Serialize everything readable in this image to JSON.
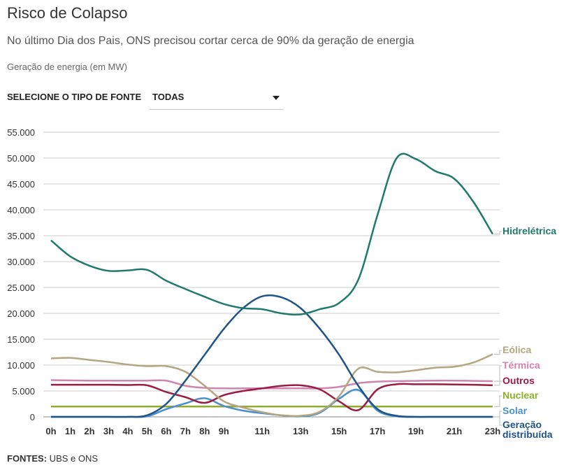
{
  "header": {
    "title": "Risco de Colapso",
    "subtitle": "No último Dia dos Pais, ONS precisou cortar cerca de 90% da geração de energia",
    "unit": "Geração de energia (em MW)"
  },
  "filter": {
    "label": "SELECIONE O TIPO DE FONTE",
    "value": "TODAS"
  },
  "footer": {
    "label": "FONTES:",
    "text": " UBS e ONS"
  },
  "chart_data": {
    "type": "line",
    "title": "Geração de energia (em MW)",
    "xlabel": "",
    "ylabel": "",
    "ylim": [
      0,
      55000
    ],
    "yticks": [
      0,
      5000,
      10000,
      15000,
      20000,
      25000,
      30000,
      35000,
      40000,
      45000,
      50000,
      55000
    ],
    "ytick_labels": [
      "0",
      "5.000",
      "10.000",
      "15.000",
      "20.000",
      "25.000",
      "30.000",
      "35.000",
      "40.000",
      "45.000",
      "50.000",
      "55.000"
    ],
    "x": [
      0,
      1,
      2,
      3,
      4,
      5,
      6,
      7,
      8,
      9,
      10,
      11,
      12,
      13,
      14,
      15,
      16,
      17,
      18,
      19,
      20,
      21,
      22,
      23
    ],
    "xtick_labels": [
      {
        "h": 0,
        "l": "0h"
      },
      {
        "h": 1,
        "l": "1h"
      },
      {
        "h": 2,
        "l": "2h"
      },
      {
        "h": 3,
        "l": "3h"
      },
      {
        "h": 4,
        "l": "4h"
      },
      {
        "h": 5,
        "l": "5h"
      },
      {
        "h": 6,
        "l": "6h"
      },
      {
        "h": 7,
        "l": "7h"
      },
      {
        "h": 8,
        "l": "8h"
      },
      {
        "h": 9,
        "l": "9h"
      },
      {
        "h": 11,
        "l": "11h"
      },
      {
        "h": 13,
        "l": "13h"
      },
      {
        "h": 15,
        "l": "15h"
      },
      {
        "h": 17,
        "l": "17h"
      },
      {
        "h": 19,
        "l": "19h"
      },
      {
        "h": 21,
        "l": "21h"
      },
      {
        "h": 23,
        "l": "23h"
      }
    ],
    "legend": "right-end-labels",
    "series": [
      {
        "name": "Hidrelétrica",
        "color": "#1f7a6c",
        "values": [
          34100,
          31000,
          29200,
          28200,
          28300,
          28400,
          26300,
          24700,
          23200,
          21800,
          21000,
          20800,
          20000,
          19800,
          20800,
          22000,
          26500,
          39000,
          50000,
          49800,
          47500,
          46000,
          41500,
          35300
        ]
      },
      {
        "name": "Eólica",
        "color": "#b5a580",
        "values": [
          11300,
          11400,
          11000,
          10600,
          10100,
          9800,
          9800,
          8700,
          6000,
          3000,
          1800,
          900,
          300,
          200,
          1000,
          4000,
          9300,
          8700,
          8600,
          9000,
          9500,
          9700,
          10500,
          12100
        ]
      },
      {
        "name": "Térmica",
        "color": "#d183b0",
        "values": [
          7100,
          7050,
          7000,
          7000,
          7000,
          7000,
          7000,
          6000,
          5600,
          5500,
          5500,
          5500,
          5500,
          5500,
          5500,
          5800,
          6500,
          6800,
          6900,
          6950,
          7000,
          7000,
          6950,
          6900
        ]
      },
      {
        "name": "Outros",
        "color": "#9b1b42",
        "values": [
          6200,
          6200,
          6200,
          6200,
          6150,
          6100,
          4800,
          3800,
          2700,
          4200,
          5000,
          5500,
          6000,
          6100,
          5300,
          3000,
          1300,
          5300,
          6300,
          6300,
          6300,
          6250,
          6200,
          6100
        ]
      },
      {
        "name": "Nuclear",
        "color": "#8fae2b",
        "values": [
          2000,
          2000,
          2000,
          2000,
          2000,
          2000,
          2000,
          2000,
          2000,
          2000,
          2000,
          2000,
          2000,
          2000,
          2000,
          2000,
          2000,
          2000,
          2000,
          2000,
          2000,
          2000,
          2000,
          2000
        ]
      },
      {
        "name": "Solar",
        "color": "#4a90d0",
        "values": [
          0,
          0,
          0,
          0,
          0,
          100,
          1500,
          2600,
          3600,
          2100,
          1200,
          700,
          300,
          100,
          800,
          3500,
          5200,
          1200,
          100,
          0,
          0,
          0,
          0,
          0
        ]
      },
      {
        "name": "Geração distribuída",
        "label_lines": [
          "Geração",
          "distribuída"
        ],
        "color": "#1f5489",
        "values": [
          0,
          0,
          0,
          0,
          0,
          300,
          2500,
          7000,
          12000,
          17000,
          21000,
          23300,
          23100,
          21000,
          17000,
          12000,
          6000,
          1500,
          200,
          0,
          0,
          0,
          0,
          0
        ]
      }
    ]
  }
}
